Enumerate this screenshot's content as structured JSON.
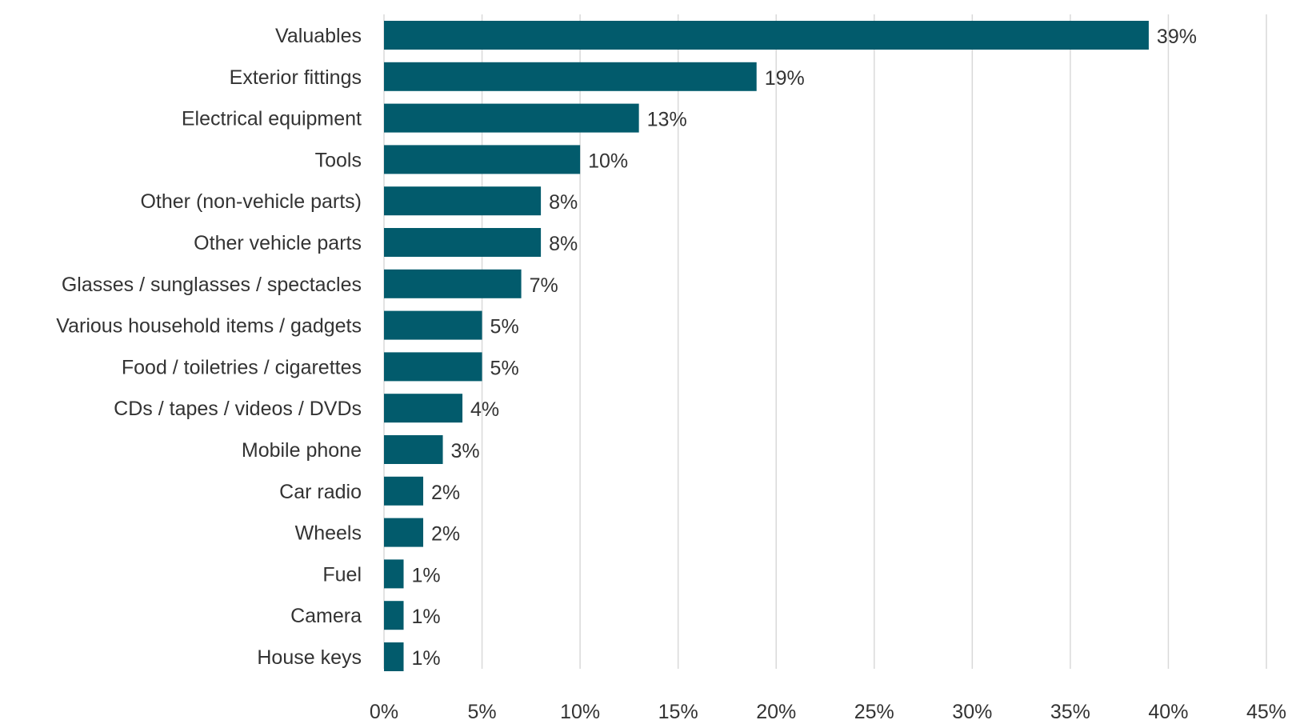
{
  "chart_data": {
    "type": "bar",
    "orientation": "horizontal",
    "title": "",
    "xlabel": "",
    "ylabel": "",
    "categories": [
      "Valuables",
      "Exterior fittings",
      "Electrical equipment",
      "Tools",
      "Other (non-vehicle parts)",
      "Other vehicle parts",
      "Glasses / sunglasses / spectacles",
      "Various household items / gadgets",
      "Food / toiletries / cigarettes",
      "CDs / tapes / videos / DVDs",
      "Mobile phone",
      "Car radio",
      "Wheels",
      "Fuel",
      "Camera",
      "House keys"
    ],
    "values": [
      39,
      19,
      13,
      10,
      8,
      8,
      7,
      5,
      5,
      4,
      3,
      2,
      2,
      1,
      1,
      1
    ],
    "value_labels": [
      "39%",
      "19%",
      "13%",
      "10%",
      "8%",
      "8%",
      "7%",
      "5%",
      "5%",
      "4%",
      "3%",
      "2%",
      "2%",
      "1%",
      "1%",
      "1%"
    ],
    "xlim": [
      0,
      45
    ],
    "x_ticks": [
      0,
      5,
      10,
      15,
      20,
      25,
      30,
      35,
      40,
      45
    ],
    "x_tick_labels": [
      "0%",
      "5%",
      "10%",
      "15%",
      "20%",
      "25%",
      "30%",
      "35%",
      "40%",
      "45%"
    ],
    "grid": "vertical",
    "legend": "none",
    "bar_color": "#025b6c",
    "grid_color": "#d9d9d9",
    "text_color": "#333333"
  }
}
